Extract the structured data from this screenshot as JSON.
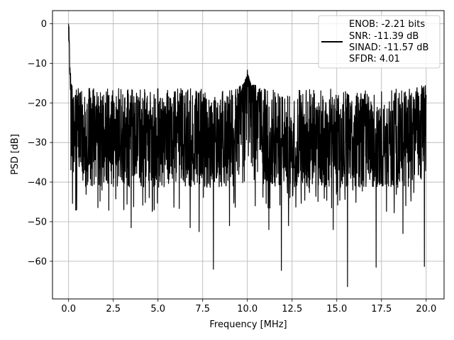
{
  "chart_data": {
    "type": "line",
    "title": "",
    "xlabel": "Frequency [MHz]",
    "ylabel": "PSD [dB]",
    "xlim": [
      -0.9,
      21.0
    ],
    "ylim": [
      -69.5,
      3.3
    ],
    "xticks": [
      0.0,
      2.5,
      5.0,
      7.5,
      10.0,
      12.5,
      15.0,
      17.5,
      20.0
    ],
    "xtick_labels": [
      "0.0",
      "2.5",
      "5.0",
      "7.5",
      "10.0",
      "12.5",
      "15.0",
      "17.5",
      "20.0"
    ],
    "yticks": [
      0,
      -10,
      -20,
      -30,
      -40,
      -50,
      -60
    ],
    "ytick_labels": [
      "0",
      "−10",
      "−20",
      "−30",
      "−40",
      "−50",
      "−60"
    ],
    "grid": true,
    "legend": {
      "placement": "upper right",
      "lines": [
        "ENOB: -2.21 bits",
        "SNR: -11.39 dB",
        "SINAD: -11.57 dB",
        "SFDR: 4.01"
      ]
    },
    "series": [
      {
        "color": "#000000",
        "x_range": [
          0.0,
          20.0
        ],
        "description_points": {
          "x": [
            0.0,
            0.05,
            0.1,
            0.15,
            0.2,
            0.3,
            0.45,
            0.6,
            0.8,
            1.0,
            1.3,
            1.6,
            2.0,
            2.5,
            3.0,
            3.5,
            4.0,
            4.5,
            5.0,
            6.0,
            7.0,
            8.0,
            9.0,
            10.0,
            11.0,
            12.0,
            13.0,
            14.0,
            15.0,
            16.0,
            17.0,
            18.0,
            19.0,
            20.0
          ],
          "y": [
            0,
            -9,
            -14,
            -17,
            -19,
            -21,
            -22,
            -23,
            -24,
            -25,
            -26,
            -26,
            -27,
            -27,
            -28,
            -28,
            -28,
            -28,
            -28,
            -28,
            -29,
            -29,
            -29,
            -12,
            -29,
            -30,
            -30,
            -30,
            -30,
            -30,
            -30,
            -30,
            -30,
            -18
          ]
        },
        "noise_floor_band": [
          -42,
          -17
        ],
        "notable_dips": [
          {
            "x": 0.45,
            "y": -47
          },
          {
            "x": 3.5,
            "y": -51.5
          },
          {
            "x": 6.8,
            "y": -51.5
          },
          {
            "x": 7.3,
            "y": -52.5
          },
          {
            "x": 8.1,
            "y": -62
          },
          {
            "x": 9.0,
            "y": -51
          },
          {
            "x": 11.2,
            "y": -52
          },
          {
            "x": 11.9,
            "y": -62.3
          },
          {
            "x": 12.3,
            "y": -51
          },
          {
            "x": 14.8,
            "y": -52
          },
          {
            "x": 15.6,
            "y": -66.4
          },
          {
            "x": 17.2,
            "y": -61.5
          },
          {
            "x": 18.7,
            "y": -53
          },
          {
            "x": 19.9,
            "y": -61.3
          }
        ],
        "notable_peaks": [
          {
            "x": 0.0,
            "y": 0
          },
          {
            "x": 10.0,
            "y": -11.7
          },
          {
            "x": 20.0,
            "y": -18
          }
        ]
      }
    ]
  }
}
